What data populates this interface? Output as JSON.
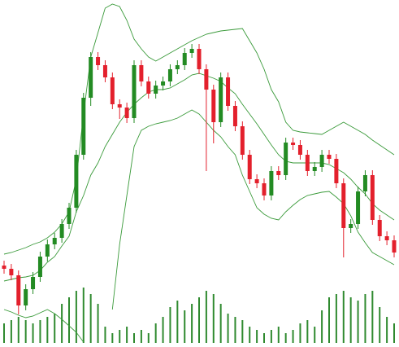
{
  "chart_data": {
    "type": "candlestick",
    "open": [
      100,
      96,
      88,
      51,
      71,
      86,
      111,
      126,
      134,
      151,
      171,
      236,
      306,
      356,
      346,
      331,
      298,
      294,
      281,
      346,
      326,
      311,
      321,
      326,
      341,
      346,
      361,
      366,
      341,
      316,
      276,
      331,
      296,
      271,
      236,
      206,
      201,
      186,
      216,
      211,
      251,
      248,
      236,
      216,
      221,
      236,
      231,
      201,
      146,
      151,
      191,
      211,
      156,
      136,
      131
    ],
    "high": [
      106,
      102,
      94,
      77,
      92,
      117,
      132,
      140,
      157,
      177,
      242,
      312,
      362,
      362,
      352,
      337,
      304,
      300,
      352,
      352,
      332,
      327,
      332,
      347,
      352,
      367,
      372,
      372,
      347,
      322,
      337,
      337,
      302,
      277,
      242,
      212,
      207,
      222,
      222,
      257,
      257,
      254,
      242,
      227,
      242,
      242,
      237,
      207,
      157,
      197,
      217,
      217,
      162,
      142,
      137
    ],
    "low": [
      90,
      82,
      40,
      45,
      65,
      80,
      105,
      120,
      128,
      145,
      165,
      230,
      296,
      340,
      325,
      292,
      280,
      275,
      275,
      320,
      305,
      305,
      315,
      320,
      335,
      340,
      355,
      335,
      216,
      250,
      270,
      290,
      265,
      230,
      200,
      195,
      180,
      180,
      205,
      205,
      242,
      230,
      210,
      210,
      215,
      225,
      195,
      110,
      140,
      145,
      185,
      150,
      130,
      125,
      110
    ],
    "close": [
      96,
      88,
      51,
      71,
      86,
      111,
      126,
      134,
      151,
      171,
      236,
      306,
      356,
      346,
      331,
      298,
      294,
      281,
      346,
      326,
      311,
      321,
      326,
      341,
      346,
      361,
      366,
      341,
      316,
      276,
      331,
      296,
      271,
      236,
      206,
      201,
      186,
      216,
      211,
      251,
      248,
      236,
      216,
      221,
      236,
      231,
      201,
      146,
      151,
      191,
      211,
      156,
      136,
      131,
      116
    ],
    "volume": [
      30,
      35,
      40,
      35,
      30,
      35,
      40,
      45,
      60,
      70,
      80,
      85,
      75,
      60,
      25,
      15,
      20,
      25,
      15,
      20,
      15,
      30,
      40,
      55,
      65,
      50,
      60,
      70,
      80,
      75,
      60,
      45,
      40,
      35,
      25,
      20,
      15,
      20,
      25,
      15,
      20,
      30,
      35,
      25,
      50,
      70,
      75,
      80,
      70,
      65,
      75,
      80,
      55,
      40,
      30
    ],
    "upper": [
      114,
      116,
      119,
      122,
      126,
      129,
      134,
      141,
      151,
      166,
      206,
      286,
      356,
      386,
      416,
      421,
      418,
      401,
      378,
      366,
      356,
      351,
      356,
      361,
      366,
      371,
      376,
      380,
      384,
      386,
      388,
      389,
      390,
      391,
      376,
      361,
      341,
      316,
      301,
      276,
      266,
      264,
      263,
      262,
      261,
      266,
      271,
      276,
      271,
      266,
      261,
      254,
      248,
      242,
      236
    ],
    "middle": [
      81,
      83,
      85,
      86,
      88,
      94,
      104,
      111,
      124,
      136,
      166,
      186,
      211,
      226,
      246,
      261,
      276,
      288,
      298,
      306,
      313,
      316,
      316,
      318,
      323,
      328,
      334,
      336,
      333,
      330,
      326,
      318,
      311,
      298,
      286,
      274,
      261,
      248,
      236,
      228,
      226,
      226,
      226,
      226,
      226,
      224,
      219,
      214,
      206,
      196,
      188,
      176,
      168,
      162,
      156
    ],
    "lower": [
      46,
      43,
      39,
      36,
      38,
      42,
      46,
      41,
      34,
      26,
      18,
      6,
      null,
      null,
      null,
      46,
      126,
      186,
      246,
      266,
      271,
      274,
      276,
      278,
      281,
      286,
      291,
      286,
      276,
      266,
      258,
      246,
      236,
      211,
      191,
      171,
      163,
      158,
      156,
      166,
      174,
      181,
      186,
      188,
      190,
      191,
      184,
      176,
      161,
      141,
      128,
      116,
      111,
      106,
      101
    ],
    "ylim": [
      0,
      426
    ],
    "y2lim": [
      0,
      100
    ],
    "up_color": "#238b23",
    "down_color": "#e3202c",
    "band_color": "#3a9a3a",
    "volume_color": "#2f8a2f"
  }
}
